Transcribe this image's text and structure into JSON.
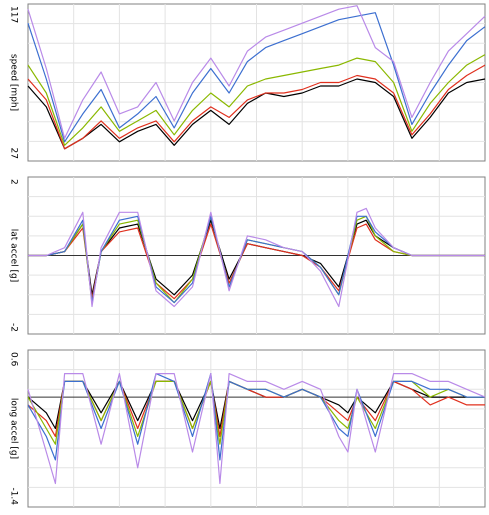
{
  "chart_data": [
    {
      "type": "line",
      "ylabel": "speed [mph]",
      "ylim": [
        27,
        117
      ],
      "ytick_labels": [
        "117",
        "27"
      ],
      "grid": true,
      "x": [
        0,
        4,
        8,
        12,
        16,
        20,
        24,
        28,
        32,
        36,
        40,
        44,
        48,
        52,
        56,
        60,
        64,
        68,
        72,
        76,
        80,
        84,
        88,
        92,
        96,
        100
      ],
      "series": [
        {
          "color": "#000000",
          "values": [
            70,
            58,
            34,
            40,
            48,
            38,
            44,
            48,
            36,
            48,
            56,
            48,
            60,
            66,
            64,
            66,
            70,
            70,
            74,
            72,
            64,
            40,
            52,
            66,
            72,
            74
          ]
        },
        {
          "color": "#e0301e",
          "values": [
            74,
            62,
            34,
            40,
            50,
            40,
            46,
            50,
            38,
            50,
            58,
            52,
            62,
            66,
            66,
            68,
            72,
            72,
            76,
            74,
            66,
            42,
            54,
            68,
            76,
            82
          ]
        },
        {
          "color": "#8ab800",
          "values": [
            82,
            66,
            36,
            46,
            58,
            44,
            50,
            56,
            42,
            56,
            66,
            58,
            70,
            74,
            76,
            78,
            80,
            82,
            86,
            84,
            72,
            44,
            60,
            72,
            82,
            88
          ]
        },
        {
          "color": "#3c6fd0",
          "values": [
            106,
            74,
            38,
            54,
            68,
            46,
            54,
            64,
            46,
            66,
            80,
            66,
            84,
            92,
            96,
            100,
            104,
            108,
            110,
            112,
            82,
            48,
            66,
            82,
            96,
            104
          ]
        },
        {
          "color": "#b98ae8",
          "values": [
            114,
            80,
            40,
            62,
            78,
            54,
            58,
            72,
            50,
            72,
            86,
            70,
            90,
            98,
            102,
            106,
            110,
            114,
            116,
            92,
            84,
            52,
            72,
            90,
            100,
            110
          ]
        }
      ]
    },
    {
      "type": "line",
      "ylabel": "lat accel [g]",
      "ylim": [
        -2,
        2
      ],
      "ytick_labels": [
        "2",
        "-2"
      ],
      "grid": true,
      "x": [
        0,
        4,
        8,
        12,
        14,
        16,
        20,
        24,
        28,
        32,
        36,
        40,
        44,
        48,
        52,
        56,
        60,
        64,
        68,
        72,
        74,
        76,
        80,
        84,
        88,
        92,
        96,
        100
      ],
      "series": [
        {
          "color": "#000000",
          "values": [
            0,
            0,
            0.1,
            0.8,
            -1.0,
            0.1,
            0.7,
            0.8,
            -0.6,
            -1.0,
            -0.5,
            0.9,
            -0.6,
            0.3,
            0.2,
            0.1,
            0.0,
            -0.2,
            -0.8,
            0.8,
            0.9,
            0.5,
            0.2,
            0,
            0,
            0,
            0,
            0
          ]
        },
        {
          "color": "#e0301e",
          "values": [
            0,
            0,
            0.1,
            0.7,
            -1.1,
            0.1,
            0.6,
            0.7,
            -0.7,
            -1.1,
            -0.6,
            0.8,
            -0.7,
            0.3,
            0.2,
            0.1,
            0.0,
            -0.3,
            -0.9,
            0.7,
            0.8,
            0.4,
            0.1,
            0,
            0,
            0,
            0,
            0
          ]
        },
        {
          "color": "#8ab800",
          "values": [
            0,
            0,
            0.1,
            0.8,
            -1.2,
            0.1,
            0.8,
            0.9,
            -0.7,
            -1.2,
            -0.6,
            1.0,
            -0.8,
            0.4,
            0.3,
            0.2,
            0.1,
            -0.3,
            -1.0,
            0.9,
            1.0,
            0.5,
            0.1,
            0,
            0,
            0,
            0,
            0
          ]
        },
        {
          "color": "#3c6fd0",
          "values": [
            0,
            0,
            0.1,
            0.9,
            -1.2,
            0.1,
            0.9,
            1.0,
            -0.8,
            -1.2,
            -0.7,
            1.0,
            -0.8,
            0.4,
            0.3,
            0.2,
            0.1,
            -0.3,
            -1.0,
            1.0,
            1.0,
            0.6,
            0.2,
            0,
            0,
            0,
            0,
            0
          ]
        },
        {
          "color": "#b98ae8",
          "values": [
            0,
            0,
            0.2,
            1.1,
            -1.3,
            0.2,
            1.1,
            1.1,
            -0.9,
            -1.3,
            -0.8,
            1.1,
            -0.9,
            0.5,
            0.4,
            0.2,
            0.1,
            -0.4,
            -1.3,
            1.1,
            1.2,
            0.7,
            0.2,
            0,
            0,
            0,
            0,
            0
          ]
        }
      ]
    },
    {
      "type": "line",
      "ylabel": "long accel [g]",
      "ylim": [
        -1.4,
        0.6
      ],
      "ytick_labels": [
        "0.6",
        "-1.4"
      ],
      "grid": true,
      "x": [
        0,
        4,
        6,
        8,
        12,
        16,
        20,
        24,
        28,
        32,
        36,
        40,
        42,
        44,
        48,
        52,
        56,
        60,
        64,
        68,
        70,
        72,
        76,
        80,
        84,
        88,
        92,
        96,
        100
      ],
      "series": [
        {
          "color": "#000000",
          "values": [
            0,
            -0.2,
            -0.4,
            0.2,
            0.2,
            -0.2,
            0.2,
            -0.3,
            0.2,
            0.2,
            -0.3,
            0.2,
            -0.4,
            0.2,
            0.1,
            0.0,
            0.0,
            0.1,
            0.0,
            -0.1,
            -0.2,
            0.0,
            -0.2,
            0.2,
            0.1,
            0.0,
            0.0,
            0.0,
            0.0
          ]
        },
        {
          "color": "#e0301e",
          "values": [
            -0.1,
            -0.3,
            -0.5,
            0.2,
            0.2,
            -0.3,
            0.2,
            -0.4,
            0.2,
            0.2,
            -0.4,
            0.2,
            -0.5,
            0.2,
            0.1,
            0.0,
            0.0,
            0.1,
            0.0,
            -0.2,
            -0.3,
            0.0,
            -0.3,
            0.2,
            0.1,
            -0.1,
            0.0,
            -0.1,
            -0.1
          ]
        },
        {
          "color": "#8ab800",
          "values": [
            0,
            -0.4,
            -0.6,
            0.2,
            0.2,
            -0.3,
            0.2,
            -0.5,
            0.2,
            0.2,
            -0.4,
            0.2,
            -0.6,
            0.2,
            0.1,
            0.1,
            0.0,
            0.1,
            0.0,
            -0.3,
            -0.4,
            0.0,
            -0.4,
            0.2,
            0.2,
            0.0,
            0.1,
            0.0,
            0.0
          ]
        },
        {
          "color": "#3c6fd0",
          "values": [
            -0.1,
            -0.5,
            -0.8,
            0.2,
            0.2,
            -0.4,
            0.2,
            -0.6,
            0.3,
            0.2,
            -0.5,
            0.3,
            -0.8,
            0.2,
            0.1,
            0.1,
            0.0,
            0.1,
            0.0,
            -0.4,
            -0.5,
            0.1,
            -0.5,
            0.2,
            0.2,
            0.1,
            0.1,
            0.0,
            0.0
          ]
        },
        {
          "color": "#b98ae8",
          "values": [
            0.1,
            -0.7,
            -1.1,
            0.3,
            0.3,
            -0.6,
            0.3,
            -0.9,
            0.3,
            0.3,
            -0.7,
            0.3,
            -1.1,
            0.3,
            0.2,
            0.2,
            0.1,
            0.2,
            0.1,
            -0.5,
            -0.7,
            0.1,
            -0.7,
            0.3,
            0.3,
            0.2,
            0.2,
            0.1,
            0.0
          ]
        }
      ]
    }
  ]
}
